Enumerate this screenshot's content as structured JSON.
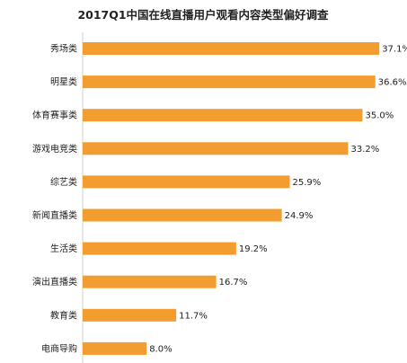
{
  "chart_data": {
    "type": "bar",
    "orientation": "horizontal",
    "title": "2017Q1中国在线直播用户观看内容类型偏好调查",
    "categories": [
      "秀场类",
      "明星类",
      "体育赛事类",
      "游戏电竞类",
      "综艺类",
      "新闻直播类",
      "生活类",
      "演出直播类",
      "教育类",
      "电商导购"
    ],
    "values": [
      37.1,
      36.6,
      35.0,
      33.2,
      25.9,
      24.9,
      19.2,
      16.7,
      11.7,
      8.0
    ],
    "value_labels": [
      "37.1%",
      "36.6%",
      "35.0%",
      "33.2%",
      "25.9%",
      "24.9%",
      "19.2%",
      "16.7%",
      "11.7%",
      "8.0%"
    ],
    "bar_color": "#F39C2F",
    "xlim": [
      0,
      38
    ],
    "xlabel": "",
    "ylabel": "",
    "grid": false,
    "legend": false
  }
}
